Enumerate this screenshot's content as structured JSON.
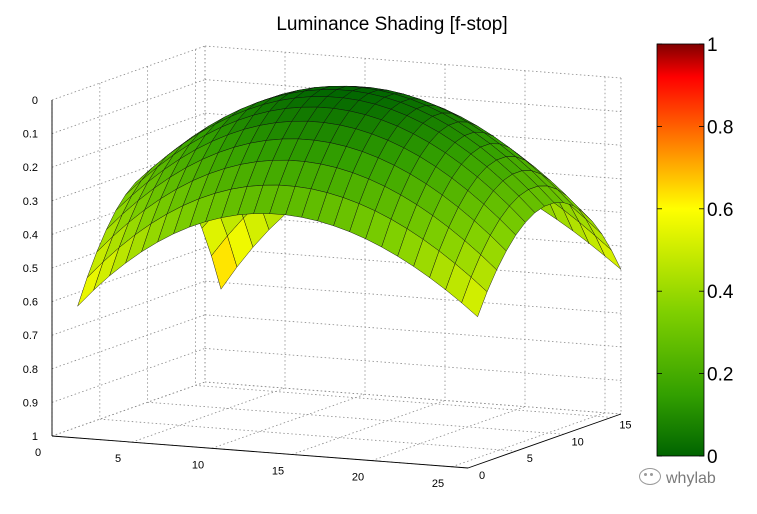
{
  "chart_data": {
    "type": "surface",
    "title": "Luminance Shading [f-stop]",
    "x": {
      "ticks": [
        0,
        5,
        10,
        15,
        20,
        25
      ],
      "range": [
        0,
        26
      ]
    },
    "y": {
      "ticks": [
        0,
        5,
        10,
        15
      ],
      "range": [
        0,
        16
      ]
    },
    "z": {
      "ticks": [
        0,
        0.1,
        0.2,
        0.3,
        0.4,
        0.5,
        0.6,
        0.7,
        0.8,
        0.9,
        1
      ],
      "range": [
        0,
        1
      ],
      "direction": "reversed"
    },
    "grid": true,
    "surface": {
      "x_range": [
        1,
        26
      ],
      "y_range": [
        1,
        16
      ],
      "value_range": [
        0,
        0.7
      ],
      "peak": 0,
      "edge_midpoints": 0.3,
      "corners": [
        0.62,
        0.56,
        0.72,
        0.57
      ]
    },
    "colorbar": {
      "ticks": [
        0,
        0.2,
        0.4,
        0.6,
        0.8,
        1
      ],
      "colormap": [
        "#006400",
        "#33a000",
        "#80d000",
        "#ffff00",
        "#ff6000",
        "#ff0000",
        "#800000"
      ],
      "position": "right"
    }
  },
  "watermark": {
    "text": "whylab"
  }
}
